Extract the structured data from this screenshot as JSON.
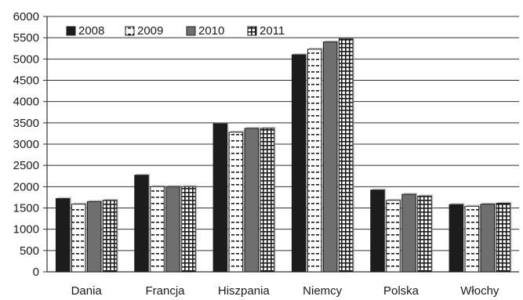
{
  "chart_data": {
    "type": "bar",
    "categories": [
      "Dania",
      "Francja",
      "Hiszpania",
      "Niemcy",
      "Polska",
      "Włochy"
    ],
    "series": [
      {
        "name": "2008",
        "values": [
          1720,
          2270,
          3480,
          5100,
          1920,
          1580
        ]
      },
      {
        "name": "2009",
        "values": [
          1590,
          2000,
          3280,
          5230,
          1680,
          1540
        ]
      },
      {
        "name": "2010",
        "values": [
          1650,
          2000,
          3370,
          5400,
          1820,
          1590
        ]
      },
      {
        "name": "2011",
        "values": [
          1680,
          2000,
          3370,
          5480,
          1780,
          1610
        ]
      }
    ],
    "ylim": [
      0,
      6000
    ],
    "yticks": [
      0,
      500,
      1000,
      1500,
      2000,
      2500,
      3000,
      3500,
      4000,
      4500,
      5000,
      5500,
      6000
    ],
    "grid": true,
    "legend_position": "top-left",
    "series_fills": [
      "solid-black",
      "white-dashes",
      "solid-gray",
      "white-grid"
    ],
    "colors": {
      "dark": "#1c1c1c",
      "mid": "#6f6f6f",
      "grid": "#333333"
    }
  }
}
